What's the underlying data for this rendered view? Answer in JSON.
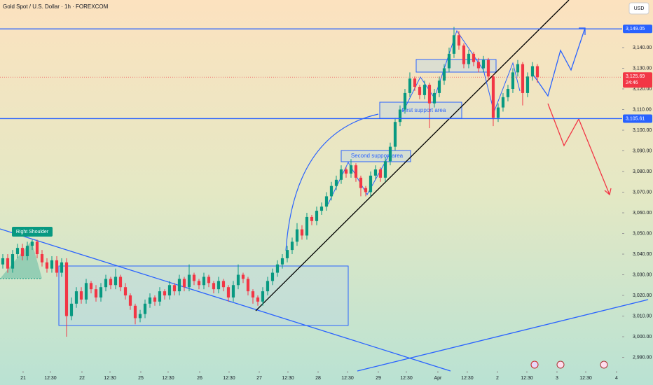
{
  "chart_data": {
    "type": "candlestick",
    "title": "Gold Spot / U.S. Dollar · 1h · FOREXCOM",
    "currency": "USD",
    "up_color": "#089981",
    "down_color": "#f23645",
    "open": [
      3035,
      3038,
      3033,
      3040,
      3043,
      3039,
      3044,
      3046,
      3040,
      3036,
      3033,
      3037,
      3031,
      3036,
      3010,
      3016,
      3022,
      3018,
      3026,
      3023,
      3019,
      3024,
      3028,
      3025,
      3029,
      3024,
      3020,
      3015,
      3009,
      3011,
      3016,
      3019,
      3017,
      3022,
      3020,
      3025,
      3022,
      3028,
      3024,
      3030,
      3027,
      3025,
      3029,
      3026,
      3023,
      3027,
      3024,
      3019,
      3025,
      3030,
      3028,
      3022,
      3019,
      3017,
      3022,
      3027,
      3031,
      3035,
      3038,
      3042,
      3046,
      3052,
      3049,
      3058,
      3056,
      3061,
      3063,
      3068,
      3073,
      3076,
      3081,
      3079,
      3083,
      3077,
      3072,
      3070,
      3078,
      3081,
      3077,
      3085,
      3092,
      3104,
      3110,
      3118,
      3125,
      3121,
      3117,
      3122,
      3113,
      3118,
      3124,
      3130,
      3137,
      3146,
      3141,
      3132,
      3137,
      3133,
      3130,
      3134,
      3126,
      3106,
      3111,
      3116,
      3120,
      3128,
      3132,
      3118,
      3126,
      3131
    ],
    "high": [
      3040,
      3040,
      3042,
      3045,
      3045,
      3046,
      3047,
      3047,
      3042,
      3038,
      3039,
      3039,
      3038,
      3038,
      3019,
      3024,
      3024,
      3028,
      3027,
      3025,
      3026,
      3030,
      3029,
      3033,
      3030,
      3026,
      3021,
      3016,
      3013,
      3018,
      3021,
      3020,
      3024,
      3023,
      3027,
      3026,
      3030,
      3029,
      3035,
      3031,
      3028,
      3031,
      3030,
      3027,
      3029,
      3028,
      3025,
      3027,
      3035,
      3031,
      3029,
      3023,
      3020,
      3024,
      3029,
      3033,
      3037,
      3040,
      3044,
      3048,
      3055,
      3054,
      3060,
      3059,
      3063,
      3065,
      3070,
      3075,
      3078,
      3083,
      3082,
      3086,
      3084,
      3078,
      3073,
      3080,
      3083,
      3082,
      3087,
      3094,
      3106,
      3112,
      3120,
      3128,
      3126,
      3122,
      3124,
      3123,
      3120,
      3126,
      3132,
      3140,
      3150,
      3148,
      3142,
      3139,
      3138,
      3135,
      3136,
      3135,
      3127,
      3113,
      3118,
      3122,
      3130,
      3134,
      3133,
      3128,
      3133,
      3132
    ],
    "low": [
      3033,
      3031,
      3031,
      3038,
      3037,
      3037,
      3042,
      3038,
      3034,
      3031,
      3031,
      3029,
      3029,
      3000,
      3008,
      3014,
      3016,
      3016,
      3021,
      3017,
      3017,
      3022,
      3023,
      3023,
      3022,
      3018,
      3013,
      3006,
      3007,
      3009,
      3014,
      3015,
      3015,
      3018,
      3018,
      3020,
      3020,
      3022,
      3022,
      3025,
      3023,
      3023,
      3024,
      3021,
      3021,
      3022,
      3017,
      3017,
      3023,
      3026,
      3020,
      3016,
      3015,
      3015,
      3020,
      3025,
      3029,
      3033,
      3036,
      3040,
      3044,
      3047,
      3047,
      3054,
      3054,
      3059,
      3061,
      3066,
      3071,
      3074,
      3077,
      3077,
      3075,
      3068,
      3068,
      3068,
      3076,
      3075,
      3075,
      3083,
      3090,
      3102,
      3108,
      3116,
      3119,
      3115,
      3115,
      3101,
      3111,
      3116,
      3122,
      3128,
      3135,
      3139,
      3130,
      3130,
      3131,
      3128,
      3128,
      3124,
      3102,
      3104,
      3109,
      3114,
      3118,
      3126,
      3112,
      3116,
      3124,
      3123
    ],
    "close": [
      3038,
      3033,
      3040,
      3043,
      3039,
      3044,
      3046,
      3040,
      3036,
      3033,
      3037,
      3031,
      3036,
      3010,
      3016,
      3022,
      3018,
      3026,
      3023,
      3019,
      3024,
      3028,
      3025,
      3029,
      3024,
      3020,
      3015,
      3009,
      3011,
      3016,
      3019,
      3017,
      3022,
      3020,
      3025,
      3022,
      3028,
      3024,
      3030,
      3027,
      3025,
      3029,
      3026,
      3023,
      3027,
      3024,
      3019,
      3025,
      3030,
      3028,
      3022,
      3019,
      3017,
      3022,
      3027,
      3031,
      3035,
      3038,
      3042,
      3046,
      3052,
      3049,
      3058,
      3056,
      3061,
      3063,
      3068,
      3073,
      3076,
      3081,
      3079,
      3083,
      3077,
      3072,
      3070,
      3078,
      3081,
      3077,
      3085,
      3092,
      3104,
      3110,
      3118,
      3125,
      3121,
      3117,
      3122,
      3113,
      3118,
      3124,
      3130,
      3137,
      3146,
      3141,
      3132,
      3137,
      3133,
      3130,
      3134,
      3126,
      3106,
      3111,
      3116,
      3120,
      3128,
      3132,
      3118,
      3126,
      3131,
      3125.69
    ],
    "xlim": [
      -0.57,
      126.29
    ],
    "xticks": [
      {
        "value": 4.14,
        "label": "21"
      },
      {
        "value": 9.71,
        "label": "12:30"
      },
      {
        "value": 16.14,
        "label": "22"
      },
      {
        "value": 21.86,
        "label": "12:30"
      },
      {
        "value": 28.14,
        "label": "25"
      },
      {
        "value": 33.71,
        "label": "12:30"
      },
      {
        "value": 40.14,
        "label": "26"
      },
      {
        "value": 46.14,
        "label": "12:30"
      },
      {
        "value": 52.29,
        "label": "27"
      },
      {
        "value": 58.14,
        "label": "12:30"
      },
      {
        "value": 64.29,
        "label": "28"
      },
      {
        "value": 70.29,
        "label": "12:30"
      },
      {
        "value": 76.57,
        "label": "29"
      },
      {
        "value": 82.29,
        "label": "12:30"
      },
      {
        "value": 88.71,
        "label": "Apr"
      },
      {
        "value": 94.71,
        "label": "12:30"
      },
      {
        "value": 100.86,
        "label": "2"
      },
      {
        "value": 106.86,
        "label": "12:30"
      },
      {
        "value": 113,
        "label": "3"
      },
      {
        "value": 118.86,
        "label": "12:30"
      },
      {
        "value": 125.14,
        "label": "4"
      }
    ],
    "ylim": [
      2983.4,
      3163.05
    ],
    "yticks": [
      {
        "value": 3140,
        "label": "3,140.00"
      },
      {
        "value": 3130,
        "label": "3,130.00"
      },
      {
        "value": 3120,
        "label": "3,120.00"
      },
      {
        "value": 3110,
        "label": "3,110.00"
      },
      {
        "value": 3100,
        "label": "3,100.00"
      },
      {
        "value": 3090,
        "label": "3,090.00"
      },
      {
        "value": 3080,
        "label": "3,080.00"
      },
      {
        "value": 3070,
        "label": "3,070.00"
      },
      {
        "value": 3060,
        "label": "3,060.00"
      },
      {
        "value": 3050,
        "label": "3,050.00"
      },
      {
        "value": 3040,
        "label": "3,040.00"
      },
      {
        "value": 3030,
        "label": "3,030.00"
      },
      {
        "value": 3020,
        "label": "3,020.00"
      },
      {
        "value": 3010,
        "label": "3,010.00"
      },
      {
        "value": 3000,
        "label": "3,000.00"
      },
      {
        "value": 2990,
        "label": "2,990.00"
      }
    ],
    "levels": [
      {
        "value": 3149.05,
        "label": "3,149.05"
      },
      {
        "value": 3105.61,
        "label": "3,105.61"
      }
    ],
    "level_color": "#2962ff",
    "last_price": {
      "value": 3125.69,
      "label": "3,125.69"
    },
    "countdown": "24:46",
    "annotations": {
      "right_shoulder": "Right Shoulder",
      "first_support": "First support area",
      "second_support": "Second support area"
    }
  }
}
